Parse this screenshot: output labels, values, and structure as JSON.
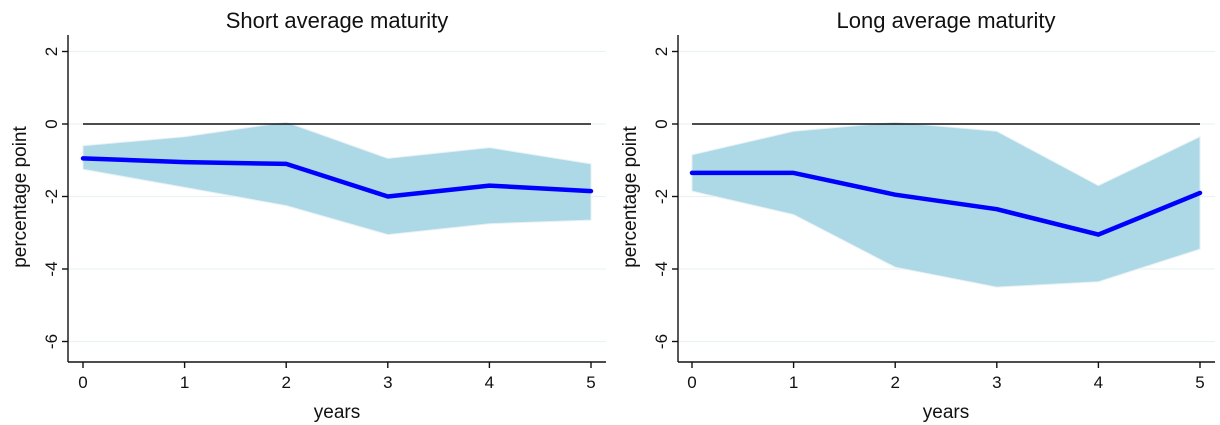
{
  "chart_data": [
    {
      "type": "line",
      "title": "Short average maturity",
      "xlabel": "years",
      "ylabel": "percentage point",
      "x": [
        0,
        1,
        2,
        3,
        4,
        5
      ],
      "xticks": [
        "0",
        "1",
        "2",
        "3",
        "4",
        "5"
      ],
      "yticks": [
        "-6",
        "-4",
        "-2",
        "0",
        "2"
      ],
      "ylim": [
        -6.5,
        2.5
      ],
      "xlim": [
        0,
        5
      ],
      "grid": true,
      "reference_line_y": 0,
      "series": [
        {
          "values": [
            -0.95,
            -1.05,
            -1.1,
            -2.0,
            -1.7,
            -1.85
          ],
          "color": "#0000ff"
        }
      ],
      "band": {
        "lower": [
          -1.25,
          -1.75,
          -2.25,
          -3.05,
          -2.75,
          -2.65
        ],
        "upper": [
          -0.6,
          -0.35,
          0.05,
          -0.95,
          -0.65,
          -1.1
        ],
        "color": "#add8e6"
      }
    },
    {
      "type": "line",
      "title": "Long average maturity",
      "xlabel": "years",
      "ylabel": "percentage point",
      "x": [
        0,
        1,
        2,
        3,
        4,
        5
      ],
      "xticks": [
        "0",
        "1",
        "2",
        "3",
        "4",
        "5"
      ],
      "yticks": [
        "-6",
        "-4",
        "-2",
        "0",
        "2"
      ],
      "ylim": [
        -6.5,
        2.5
      ],
      "xlim": [
        0,
        5
      ],
      "grid": true,
      "reference_line_y": 0,
      "series": [
        {
          "values": [
            -1.35,
            -1.35,
            -1.95,
            -2.35,
            -3.05,
            -1.9
          ],
          "color": "#0000ff"
        }
      ],
      "band": {
        "lower": [
          -1.85,
          -2.5,
          -3.95,
          -4.5,
          -4.35,
          -3.45
        ],
        "upper": [
          -0.85,
          -0.2,
          0.05,
          -0.2,
          -1.7,
          -0.35
        ],
        "color": "#add8e6"
      }
    }
  ]
}
